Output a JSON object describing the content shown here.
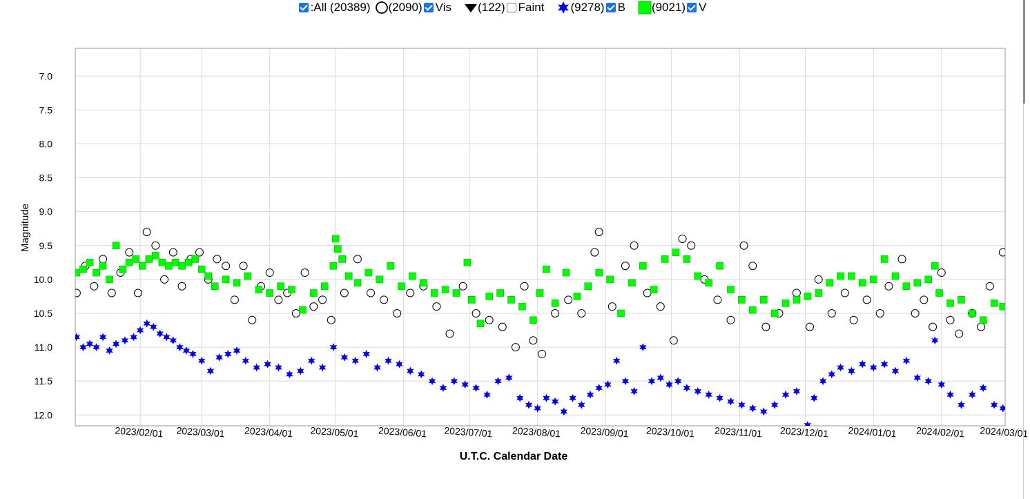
{
  "legend": {
    "all": {
      "label": ":All (20389)",
      "checked": true
    },
    "vis": {
      "count": "(2090)",
      "label": "Vis",
      "checked": true
    },
    "faint": {
      "count": "(122)",
      "label": "Faint",
      "checked": false
    },
    "b": {
      "count": "(9278)",
      "label": "B",
      "checked": true
    },
    "v": {
      "count": "(9021)",
      "label": "V",
      "checked": true
    }
  },
  "colors": {
    "vis": "#000000",
    "b": "#0000ee",
    "v": "#00ff00",
    "grid": "#d9d9d9"
  },
  "chart_data": {
    "type": "scatter",
    "title": "",
    "xlabel": "U.T.C. Calendar Date",
    "ylabel": "Magnitude",
    "x_unit": "days since 2023-01-01",
    "xlim": [
      1.4,
      425
    ],
    "ylim": [
      12.16,
      6.59
    ],
    "y_inverted": true,
    "grid": true,
    "yticks": [
      7.0,
      7.5,
      8.0,
      8.5,
      9.0,
      9.5,
      10.0,
      10.5,
      11.0,
      11.5,
      12.0
    ],
    "ytick_labels": [
      "7.0",
      "7.5",
      "8.0",
      "8.5",
      "9.0",
      "9.5",
      "10.0",
      "10.5",
      "11.0",
      "11.5",
      "12.0"
    ],
    "xticks": [
      31,
      59,
      90,
      120,
      151,
      181,
      212,
      243,
      273,
      304,
      334,
      365,
      396,
      425
    ],
    "xtick_labels": [
      "2023/02/01",
      "2023/03/01",
      "2023/04/01",
      "2023/05/01",
      "2023/06/01",
      "2023/07/01",
      "2023/08/01",
      "2023/09/01",
      "2023/10/01",
      "2023/11/01",
      "2023/12/01",
      "2024/01/01",
      "2024/02/01",
      "2024/03/01"
    ],
    "series": [
      {
        "name": "Vis",
        "marker": "open-circle",
        "points": [
          [
            2,
            10.2
          ],
          [
            6,
            9.8
          ],
          [
            10,
            10.1
          ],
          [
            14,
            9.7
          ],
          [
            18,
            10.2
          ],
          [
            22,
            9.9
          ],
          [
            26,
            9.6
          ],
          [
            30,
            10.2
          ],
          [
            34,
            9.3
          ],
          [
            38,
            9.5
          ],
          [
            42,
            10.0
          ],
          [
            46,
            9.6
          ],
          [
            50,
            10.1
          ],
          [
            54,
            9.7
          ],
          [
            58,
            9.6
          ],
          [
            62,
            10.0
          ],
          [
            66,
            9.7
          ],
          [
            70,
            9.8
          ],
          [
            74,
            10.3
          ],
          [
            78,
            9.8
          ],
          [
            82,
            10.6
          ],
          [
            86,
            10.1
          ],
          [
            90,
            9.9
          ],
          [
            94,
            10.3
          ],
          [
            98,
            10.2
          ],
          [
            102,
            10.5
          ],
          [
            106,
            9.9
          ],
          [
            110,
            10.4
          ],
          [
            114,
            10.3
          ],
          [
            118,
            10.6
          ],
          [
            124,
            10.2
          ],
          [
            130,
            9.7
          ],
          [
            136,
            10.2
          ],
          [
            142,
            10.3
          ],
          [
            148,
            10.5
          ],
          [
            154,
            10.2
          ],
          [
            160,
            10.1
          ],
          [
            166,
            10.4
          ],
          [
            172,
            10.8
          ],
          [
            178,
            10.1
          ],
          [
            184,
            10.5
          ],
          [
            190,
            10.6
          ],
          [
            196,
            10.7
          ],
          [
            202,
            11.0
          ],
          [
            206,
            10.1
          ],
          [
            210,
            10.9
          ],
          [
            214,
            11.1
          ],
          [
            220,
            10.5
          ],
          [
            226,
            10.3
          ],
          [
            232,
            10.5
          ],
          [
            238,
            9.6
          ],
          [
            240,
            9.3
          ],
          [
            246,
            10.4
          ],
          [
            252,
            9.8
          ],
          [
            256,
            9.5
          ],
          [
            262,
            10.2
          ],
          [
            268,
            10.4
          ],
          [
            274,
            10.9
          ],
          [
            278,
            9.4
          ],
          [
            282,
            9.5
          ],
          [
            288,
            10.0
          ],
          [
            294,
            10.3
          ],
          [
            300,
            10.6
          ],
          [
            306,
            9.5
          ],
          [
            310,
            9.8
          ],
          [
            316,
            10.7
          ],
          [
            322,
            10.5
          ],
          [
            330,
            10.2
          ],
          [
            336,
            10.7
          ],
          [
            340,
            10.0
          ],
          [
            346,
            10.5
          ],
          [
            352,
            10.2
          ],
          [
            356,
            10.6
          ],
          [
            362,
            10.3
          ],
          [
            368,
            10.5
          ],
          [
            372,
            10.1
          ],
          [
            378,
            9.7
          ],
          [
            384,
            10.5
          ],
          [
            388,
            10.3
          ],
          [
            392,
            10.7
          ],
          [
            396,
            9.9
          ],
          [
            400,
            10.6
          ],
          [
            404,
            10.8
          ],
          [
            410,
            10.5
          ],
          [
            414,
            10.7
          ],
          [
            418,
            10.1
          ],
          [
            424,
            9.6
          ]
        ]
      },
      {
        "name": "V",
        "marker": "square",
        "points": [
          [
            2,
            9.9
          ],
          [
            5,
            9.85
          ],
          [
            8,
            9.75
          ],
          [
            11,
            9.9
          ],
          [
            14,
            9.8
          ],
          [
            17,
            10.0
          ],
          [
            20,
            9.5
          ],
          [
            23,
            9.85
          ],
          [
            26,
            9.75
          ],
          [
            29,
            9.7
          ],
          [
            32,
            9.8
          ],
          [
            35,
            9.7
          ],
          [
            38,
            9.65
          ],
          [
            41,
            9.75
          ],
          [
            44,
            9.8
          ],
          [
            47,
            9.75
          ],
          [
            50,
            9.8
          ],
          [
            53,
            9.75
          ],
          [
            56,
            9.7
          ],
          [
            59,
            9.85
          ],
          [
            62,
            9.95
          ],
          [
            65,
            10.1
          ],
          [
            70,
            10.0
          ],
          [
            75,
            10.05
          ],
          [
            80,
            9.95
          ],
          [
            85,
            10.15
          ],
          [
            90,
            10.2
          ],
          [
            95,
            10.1
          ],
          [
            100,
            10.15
          ],
          [
            105,
            10.45
          ],
          [
            110,
            10.2
          ],
          [
            115,
            10.1
          ],
          [
            119,
            9.8
          ],
          [
            120,
            9.4
          ],
          [
            121,
            9.55
          ],
          [
            123,
            9.7
          ],
          [
            126,
            9.95
          ],
          [
            130,
            10.05
          ],
          [
            135,
            9.9
          ],
          [
            140,
            10.0
          ],
          [
            145,
            9.8
          ],
          [
            150,
            10.1
          ],
          [
            155,
            9.95
          ],
          [
            160,
            10.05
          ],
          [
            165,
            10.2
          ],
          [
            170,
            10.15
          ],
          [
            175,
            10.2
          ],
          [
            180,
            9.75
          ],
          [
            182,
            10.3
          ],
          [
            186,
            10.65
          ],
          [
            190,
            10.25
          ],
          [
            195,
            10.2
          ],
          [
            200,
            10.3
          ],
          [
            205,
            10.4
          ],
          [
            210,
            10.6
          ],
          [
            213,
            10.2
          ],
          [
            216,
            9.85
          ],
          [
            220,
            10.35
          ],
          [
            225,
            9.9
          ],
          [
            230,
            10.25
          ],
          [
            235,
            10.1
          ],
          [
            240,
            9.9
          ],
          [
            245,
            10.0
          ],
          [
            250,
            10.5
          ],
          [
            255,
            10.05
          ],
          [
            260,
            9.8
          ],
          [
            265,
            10.15
          ],
          [
            270,
            9.7
          ],
          [
            275,
            9.6
          ],
          [
            280,
            9.7
          ],
          [
            285,
            9.95
          ],
          [
            290,
            10.05
          ],
          [
            295,
            9.8
          ],
          [
            300,
            10.15
          ],
          [
            305,
            10.3
          ],
          [
            310,
            10.45
          ],
          [
            315,
            10.3
          ],
          [
            320,
            10.5
          ],
          [
            325,
            10.35
          ],
          [
            330,
            10.3
          ],
          [
            335,
            10.25
          ],
          [
            340,
            10.2
          ],
          [
            345,
            10.05
          ],
          [
            350,
            9.95
          ],
          [
            355,
            9.95
          ],
          [
            360,
            10.05
          ],
          [
            365,
            10.0
          ],
          [
            370,
            9.7
          ],
          [
            375,
            9.95
          ],
          [
            380,
            10.1
          ],
          [
            385,
            10.05
          ],
          [
            390,
            10.0
          ],
          [
            393,
            9.8
          ],
          [
            395,
            10.2
          ],
          [
            400,
            10.35
          ],
          [
            405,
            10.3
          ],
          [
            410,
            10.5
          ],
          [
            415,
            10.6
          ],
          [
            420,
            10.35
          ],
          [
            424,
            10.4
          ]
        ]
      },
      {
        "name": "B",
        "marker": "star",
        "points": [
          [
            2,
            10.85
          ],
          [
            5,
            11.0
          ],
          [
            8,
            10.95
          ],
          [
            11,
            11.0
          ],
          [
            14,
            10.85
          ],
          [
            17,
            11.05
          ],
          [
            20,
            10.95
          ],
          [
            24,
            10.9
          ],
          [
            28,
            10.85
          ],
          [
            31,
            10.75
          ],
          [
            34,
            10.65
          ],
          [
            37,
            10.7
          ],
          [
            40,
            10.8
          ],
          [
            43,
            10.85
          ],
          [
            46,
            10.9
          ],
          [
            49,
            11.0
          ],
          [
            52,
            11.05
          ],
          [
            55,
            11.1
          ],
          [
            59,
            11.2
          ],
          [
            63,
            11.35
          ],
          [
            67,
            11.15
          ],
          [
            71,
            11.1
          ],
          [
            75,
            11.05
          ],
          [
            79,
            11.2
          ],
          [
            84,
            11.3
          ],
          [
            89,
            11.25
          ],
          [
            94,
            11.3
          ],
          [
            99,
            11.4
          ],
          [
            104,
            11.35
          ],
          [
            109,
            11.2
          ],
          [
            114,
            11.3
          ],
          [
            119,
            11.0
          ],
          [
            124,
            11.15
          ],
          [
            129,
            11.2
          ],
          [
            134,
            11.1
          ],
          [
            139,
            11.3
          ],
          [
            144,
            11.2
          ],
          [
            149,
            11.25
          ],
          [
            154,
            11.35
          ],
          [
            159,
            11.4
          ],
          [
            164,
            11.5
          ],
          [
            169,
            11.6
          ],
          [
            174,
            11.5
          ],
          [
            179,
            11.55
          ],
          [
            184,
            11.6
          ],
          [
            189,
            11.7
          ],
          [
            194,
            11.5
          ],
          [
            199,
            11.45
          ],
          [
            204,
            11.75
          ],
          [
            208,
            11.85
          ],
          [
            212,
            11.9
          ],
          [
            216,
            11.75
          ],
          [
            220,
            11.8
          ],
          [
            224,
            11.95
          ],
          [
            228,
            11.75
          ],
          [
            232,
            11.85
          ],
          [
            236,
            11.7
          ],
          [
            240,
            11.6
          ],
          [
            244,
            11.55
          ],
          [
            248,
            11.2
          ],
          [
            252,
            11.5
          ],
          [
            256,
            11.65
          ],
          [
            260,
            11.0
          ],
          [
            264,
            11.5
          ],
          [
            268,
            11.45
          ],
          [
            272,
            11.55
          ],
          [
            276,
            11.5
          ],
          [
            280,
            11.6
          ],
          [
            285,
            11.65
          ],
          [
            290,
            11.7
          ],
          [
            295,
            11.75
          ],
          [
            300,
            11.8
          ],
          [
            305,
            11.85
          ],
          [
            310,
            11.9
          ],
          [
            315,
            11.95
          ],
          [
            320,
            11.85
          ],
          [
            325,
            11.7
          ],
          [
            330,
            11.65
          ],
          [
            335,
            12.15
          ],
          [
            338,
            11.75
          ],
          [
            342,
            11.5
          ],
          [
            346,
            11.4
          ],
          [
            350,
            11.3
          ],
          [
            355,
            11.35
          ],
          [
            360,
            11.25
          ],
          [
            365,
            11.3
          ],
          [
            370,
            11.25
          ],
          [
            375,
            11.35
          ],
          [
            380,
            11.2
          ],
          [
            385,
            11.45
          ],
          [
            390,
            11.5
          ],
          [
            393,
            10.9
          ],
          [
            396,
            11.55
          ],
          [
            400,
            11.7
          ],
          [
            405,
            11.85
          ],
          [
            410,
            11.7
          ],
          [
            415,
            11.6
          ],
          [
            420,
            11.85
          ],
          [
            424,
            11.9
          ]
        ]
      }
    ]
  }
}
